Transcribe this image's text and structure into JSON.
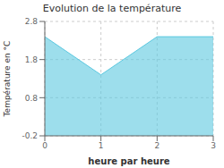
{
  "chart_data": {
    "type": "area",
    "title": "Evolution de la température",
    "xlabel": "heure par heure",
    "ylabel": "Température en °C",
    "x": [
      0,
      1,
      2,
      3
    ],
    "values": [
      2.4,
      1.4,
      2.4,
      2.4
    ],
    "color": "#5bc8e0",
    "xlim": [
      0,
      3
    ],
    "ylim": [
      -0.2,
      2.8
    ],
    "xticks": [
      0,
      1,
      2,
      3
    ],
    "yticks": [
      -0.2,
      0.8,
      1.8,
      2.8
    ],
    "grid": true
  }
}
